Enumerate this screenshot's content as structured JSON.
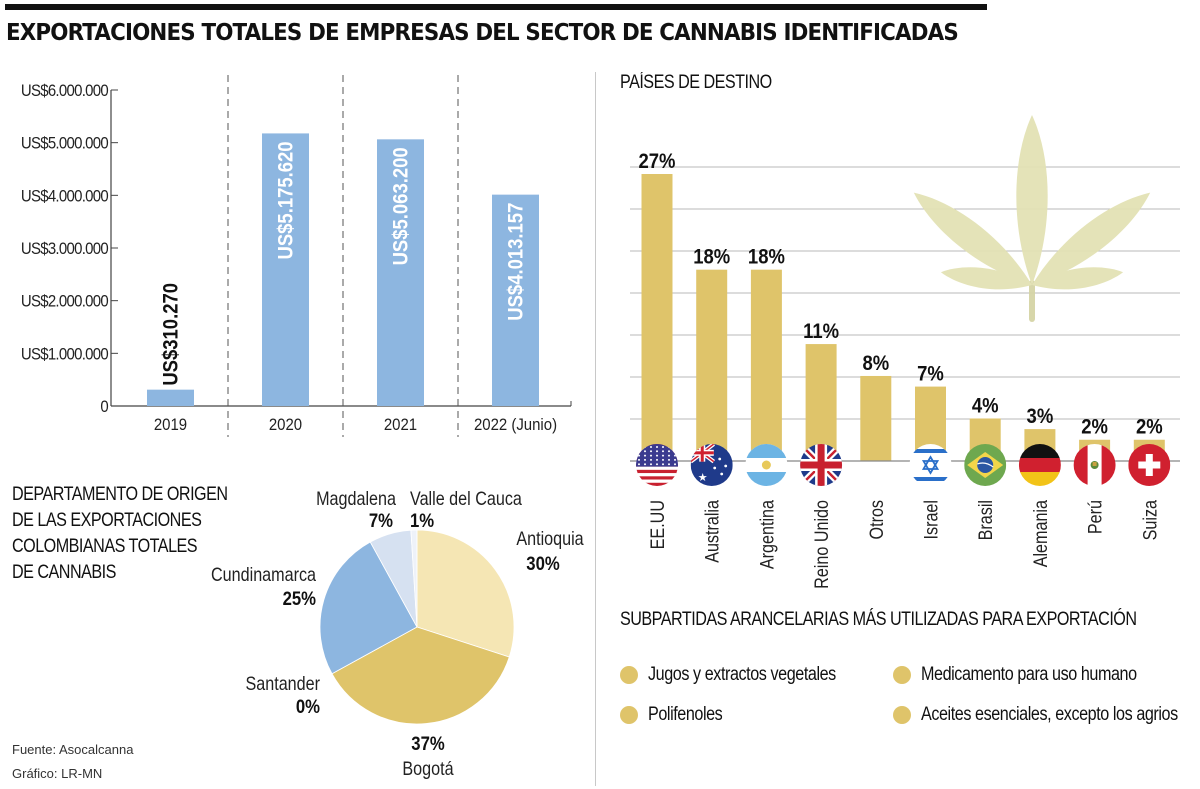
{
  "header": {
    "title": "EXPORTACIONES TOTALES DE EMPRESAS DEL SECTOR DE CANNABIS IDENTIFICADAS"
  },
  "colors": {
    "blue_bar": "#8db6e0",
    "gold_bar": "#dfc46a",
    "pie_antioquia": "#f5e6b4",
    "pie_bogota": "#dfc46a",
    "pie_santander": "#e8d48a",
    "pie_cundinamarca": "#8db6e0",
    "pie_magdalena": "#d6e1f1",
    "pie_valle": "#eef2f9",
    "leaf": "#e3e2b5"
  },
  "chart_data": [
    {
      "type": "bar",
      "title": "",
      "categories": [
        "2019",
        "2020",
        "2021",
        "2022 (Junio)"
      ],
      "values": [
        310270,
        5175620,
        5063200,
        4013157
      ],
      "value_labels": [
        "US$310.270",
        "US$5.175.620",
        "US$5.063.200",
        "US$4.013.157"
      ],
      "yticks": [
        0,
        1000000,
        2000000,
        3000000,
        4000000,
        5000000,
        6000000
      ],
      "ytick_labels": [
        "0",
        "US$1.000.000",
        "US$2.000.000",
        "US$3.000.000",
        "US$4.000.000",
        "US$5.000.000",
        "US$6.000.000"
      ],
      "ylim": [
        0,
        6000000
      ],
      "xlabel": "",
      "ylabel": "",
      "grid": false
    },
    {
      "type": "bar",
      "title": "PAÍSES DE DESTINO",
      "categories": [
        "EE.UU",
        "Australia",
        "Argentina",
        "Reino Unido",
        "Otros",
        "Israel",
        "Brasil",
        "Alemania",
        "Perú",
        "Suiza"
      ],
      "flags": [
        "us-flag",
        "australia-flag",
        "argentina-flag",
        "uk-flag",
        "",
        "israel-flag",
        "brazil-flag",
        "germany-flag",
        "peru-flag",
        "switzerland-flag"
      ],
      "values": [
        27,
        18,
        18,
        11,
        8,
        7,
        4,
        3,
        2,
        2
      ],
      "value_labels": [
        "27%",
        "18%",
        "18%",
        "11%",
        "8%",
        "7%",
        "4%",
        "3%",
        "2%",
        "2%"
      ],
      "ylim": [
        0,
        27
      ],
      "unit": "%",
      "grid": true
    },
    {
      "type": "pie",
      "title": "DEPARTAMENTO DE ORIGEN DE LAS EXPORTACIONES COLOMBIANAS TOTALES DE CANNABIS",
      "title_lines": [
        "DEPARTAMENTO DE ORIGEN",
        "DE LAS EXPORTACIONES",
        "COLOMBIANAS TOTALES",
        "DE CANNABIS"
      ],
      "slices": [
        {
          "label": "Antioquia",
          "value": 30,
          "value_label": "30%",
          "color_key": "pie_antioquia"
        },
        {
          "label": "Bogotá",
          "value": 37,
          "value_label": "37%",
          "color_key": "pie_bogota"
        },
        {
          "label": "Santander",
          "value": 0,
          "value_label": "0%",
          "color_key": "pie_santander"
        },
        {
          "label": "Cundinamarca",
          "value": 25,
          "value_label": "25%",
          "color_key": "pie_cundinamarca"
        },
        {
          "label": "Magdalena",
          "value": 7,
          "value_label": "7%",
          "color_key": "pie_magdalena"
        },
        {
          "label": "Valle del Cauca",
          "value": 1,
          "value_label": "1%",
          "color_key": "pie_valle"
        }
      ]
    }
  ],
  "subpartidas": {
    "title": "SUBPARTIDAS ARANCELARIAS MÁS UTILIZADAS PARA EXPORTACIÓN",
    "items": [
      "Jugos y extractos vegetales",
      "Medicamento para uso humano",
      "Polifenoles",
      "Aceites esenciales, excepto los agrios"
    ]
  },
  "footer": {
    "source": "Fuente: Asocalcanna",
    "graphic": "Gráfico: LR-MN"
  }
}
